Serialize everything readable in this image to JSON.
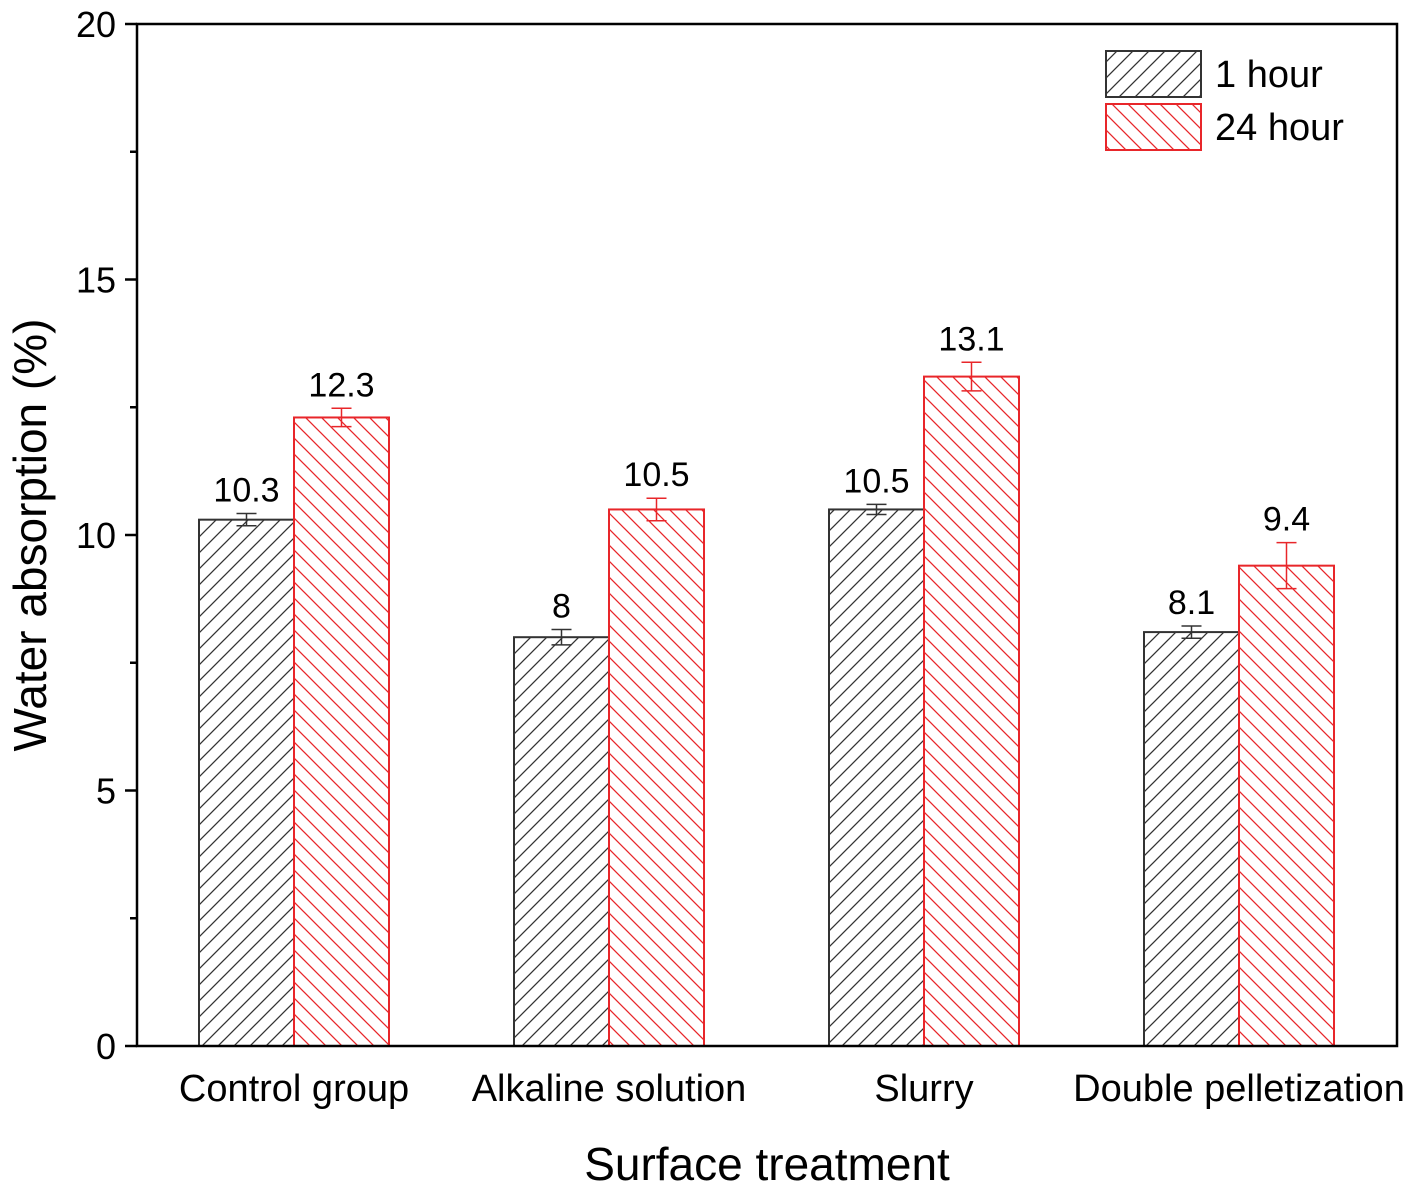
{
  "chart_data": {
    "type": "bar",
    "title": "",
    "xlabel": "Surface treatment",
    "ylabel": "Water absorption (%)",
    "ylim": [
      0,
      20
    ],
    "yticks": [
      0,
      5,
      10,
      15,
      20
    ],
    "grid": false,
    "legend_position": "top-right",
    "categories": [
      "Control group",
      "Alkaline solution",
      "Slurry",
      "Double pelletization"
    ],
    "series": [
      {
        "name": "1 hour",
        "color": "#333333",
        "values": [
          10.3,
          8,
          10.5,
          8.1
        ],
        "errors": [
          0.12,
          0.15,
          0.1,
          0.12
        ],
        "labels": [
          "10.3",
          "8",
          "10.5",
          "8.1"
        ]
      },
      {
        "name": "24 hour",
        "color": "#e8262a",
        "values": [
          12.3,
          10.5,
          13.1,
          9.4
        ],
        "errors": [
          0.18,
          0.22,
          0.28,
          0.45
        ],
        "labels": [
          "12.3",
          "10.5",
          "13.1",
          "9.4"
        ]
      }
    ]
  }
}
